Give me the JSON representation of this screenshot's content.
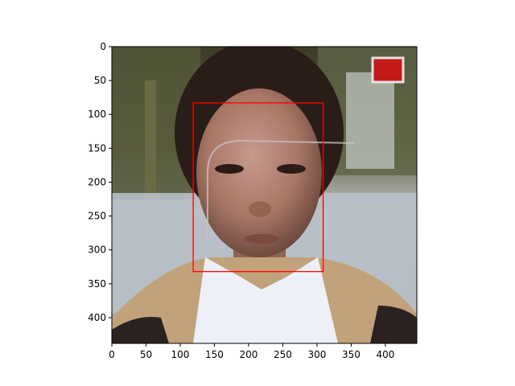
{
  "figure": {
    "image_extent": {
      "x_min": 0,
      "x_max": 446,
      "y_min": 0,
      "y_max": 438
    },
    "x_ticks": [
      0,
      50,
      100,
      150,
      200,
      250,
      300,
      350,
      400
    ],
    "y_ticks": [
      0,
      50,
      100,
      150,
      200,
      250,
      300,
      350,
      400
    ],
    "image_subject": "face-photo",
    "detection_box": {
      "x0": 119,
      "y0": 83,
      "x1": 309,
      "y1": 332,
      "color": "#ff0000"
    },
    "colors": {
      "axis": "#000000",
      "box": "#ff0000",
      "wall": "#b9c0c8",
      "foliage": "#5a5a32",
      "skin": "#a87766",
      "hair": "#2a1d18",
      "scarf": "#eef0f8",
      "jacket": "#c2a27b"
    }
  }
}
